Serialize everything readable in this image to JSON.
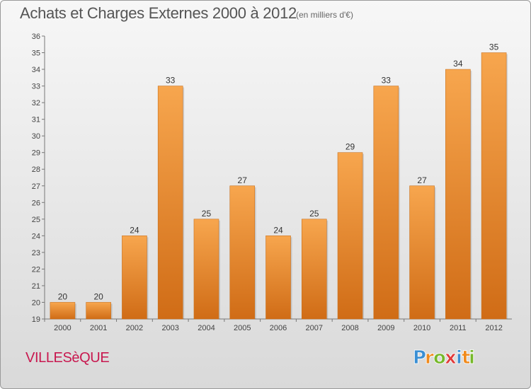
{
  "title": "Achats et Charges Externes 2000 à 2012",
  "unit_label": "(en milliers d'€)",
  "commune": "VILLESèQUE",
  "brand": {
    "name": "Proxiti",
    "letters": [
      {
        "ch": "P",
        "color": "#3a8fd4"
      },
      {
        "ch": "r",
        "color": "#f08a1c"
      },
      {
        "ch": "o",
        "color": "#76b82a"
      },
      {
        "ch": "x",
        "color": "#e03a3a"
      },
      {
        "ch": "i",
        "color": "#3a8fd4"
      },
      {
        "ch": "t",
        "color": "#f08a1c"
      },
      {
        "ch": "i",
        "color": "#76b82a"
      }
    ]
  },
  "colors": {
    "bar_light": "#f7a64e",
    "bar_dark": "#d06c16",
    "title": "#555555",
    "commune": "#c8184f"
  },
  "chart_data": {
    "type": "bar",
    "categories": [
      "2000",
      "2001",
      "2002",
      "2003",
      "2004",
      "2005",
      "2006",
      "2007",
      "2008",
      "2009",
      "2010",
      "2011",
      "2012"
    ],
    "values": [
      20,
      20,
      24,
      33,
      25,
      27,
      24,
      25,
      29,
      33,
      27,
      34,
      35
    ],
    "ylim": [
      19,
      36
    ],
    "yticks": [
      19,
      20,
      21,
      22,
      23,
      24,
      25,
      26,
      27,
      28,
      29,
      30,
      31,
      32,
      33,
      34,
      35,
      36
    ],
    "grid": false
  }
}
